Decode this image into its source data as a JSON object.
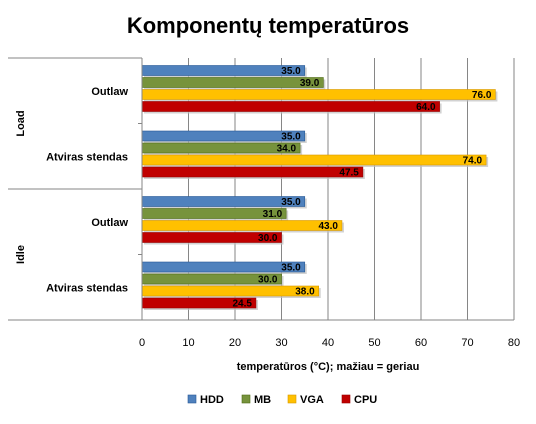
{
  "chart_data": {
    "type": "bar",
    "orientation": "horizontal",
    "title": "Komponentų temperatūros",
    "xlabel": "temperatūros (°C); mažiau = geriau",
    "xlim": [
      0,
      80
    ],
    "xticks": [
      0,
      10,
      20,
      30,
      40,
      50,
      60,
      70,
      80
    ],
    "grid": true,
    "legend_position": "bottom",
    "groups": [
      {
        "label": "Load",
        "categories": [
          {
            "label": "Outlaw",
            "values": {
              "HDD": 35.0,
              "MB": 39.0,
              "VGA": 76.0,
              "CPU": 64.0
            }
          },
          {
            "label": "Atviras stendas",
            "values": {
              "HDD": 35.0,
              "MB": 34.0,
              "VGA": 74.0,
              "CPU": 47.5
            }
          }
        ]
      },
      {
        "label": "Idle",
        "categories": [
          {
            "label": "Outlaw",
            "values": {
              "HDD": 35.0,
              "MB": 31.0,
              "VGA": 43.0,
              "CPU": 30.0
            }
          },
          {
            "label": "Atviras stendas",
            "values": {
              "HDD": 35.0,
              "MB": 30.0,
              "VGA": 38.0,
              "CPU": 24.5
            }
          }
        ]
      }
    ],
    "series": [
      {
        "name": "HDD",
        "color": "#4f81bd"
      },
      {
        "name": "MB",
        "color": "#77933c"
      },
      {
        "name": "VGA",
        "color": "#ffc000"
      },
      {
        "name": "CPU",
        "color": "#c00000"
      }
    ]
  }
}
